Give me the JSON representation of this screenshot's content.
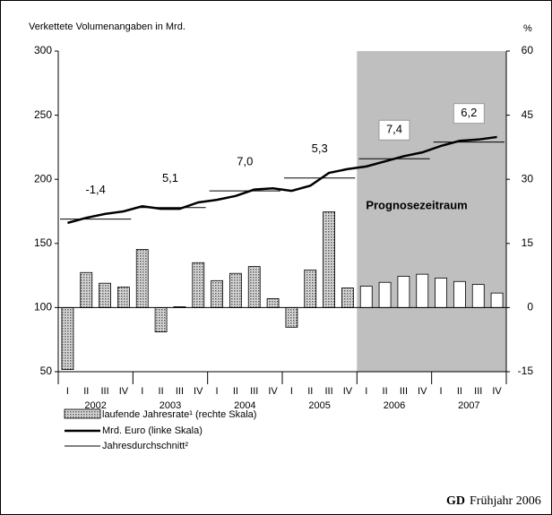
{
  "chart_data": {
    "type": "combo",
    "title": "Verkettete Volumenangaben in Mrd.",
    "y2_label": "%",
    "categories": [
      "I",
      "II",
      "III",
      "IV",
      "I",
      "II",
      "III",
      "IV",
      "I",
      "II",
      "III",
      "IV",
      "I",
      "II",
      "III",
      "IV",
      "I",
      "II",
      "III",
      "IV",
      "I",
      "II",
      "III",
      "IV"
    ],
    "years": [
      "2002",
      "2003",
      "2004",
      "2005",
      "2006",
      "2007"
    ],
    "forecast_start_year": "2006",
    "forecast_label": "Prognosezeitraum",
    "ylim": [
      50,
      300
    ],
    "yticks": [
      50,
      100,
      150,
      200,
      250,
      300
    ],
    "y2lim": [
      -15,
      60
    ],
    "y2ticks": [
      -15,
      0,
      15,
      30,
      45,
      60
    ],
    "series": [
      {
        "name": "laufende Jahresrate¹ (rechte Skala)",
        "type": "bar",
        "axis": "y2",
        "color": "#999999",
        "values": [
          -14.5,
          8.2,
          5.7,
          4.8,
          13.6,
          -5.7,
          0.2,
          10.5,
          6.3,
          8.0,
          9.6,
          2.1,
          -4.6,
          8.8,
          22.4,
          4.6,
          5.0,
          5.9,
          7.3,
          7.8,
          6.9,
          6.1,
          5.4,
          3.4
        ]
      },
      {
        "name": "Mrd. Euro (linke Skala)",
        "type": "line",
        "axis": "y",
        "color": "#000000",
        "values": [
          166,
          170,
          173,
          175,
          179,
          177,
          177,
          182,
          184,
          187,
          192,
          193,
          191,
          195,
          205,
          208,
          210,
          214,
          218,
          221,
          226,
          230,
          231,
          233
        ]
      }
    ],
    "annual": {
      "name": "Jahresdurchschnitt²",
      "color": "#000000",
      "values": [
        169,
        178,
        191,
        201,
        216,
        229
      ]
    },
    "annual_growth": {
      "values": [
        -1.4,
        5.1,
        7.0,
        5.3,
        7.4,
        6.2
      ],
      "value_labels": [
        "-1,4",
        "5,1",
        "7,0",
        "5,3",
        "7,4",
        "6,2"
      ]
    },
    "source": "GD",
    "source_note": "Frühjahr 2006"
  }
}
